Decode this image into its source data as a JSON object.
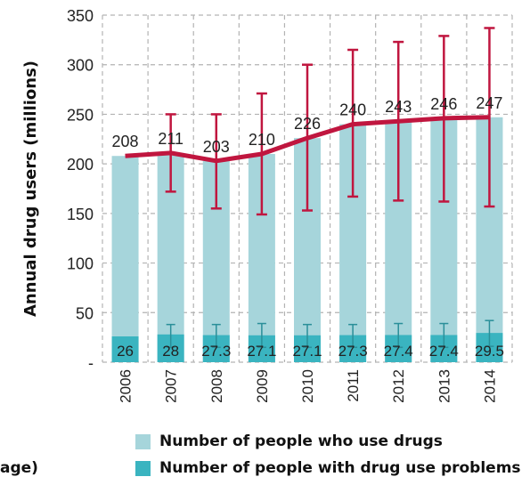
{
  "chart_data": {
    "type": "bar",
    "categories": [
      "2006",
      "2007",
      "2008",
      "2009",
      "2010",
      "2011",
      "2012",
      "2013",
      "2014"
    ],
    "ylabel": "Annual drug users (millions)",
    "ylim": [
      0,
      350
    ],
    "yticks": [
      {
        "value": 0,
        "label": "-"
      },
      {
        "value": 50,
        "label": "50"
      },
      {
        "value": 100,
        "label": "100"
      },
      {
        "value": 150,
        "label": "150"
      },
      {
        "value": 200,
        "label": "200"
      },
      {
        "value": 250,
        "label": "250"
      },
      {
        "value": 300,
        "label": "300"
      },
      {
        "value": 350,
        "label": "350"
      }
    ],
    "grid": true,
    "series": [
      {
        "name": "Number of people who use drugs",
        "values": [
          208,
          211,
          203,
          210,
          226,
          240,
          243,
          246,
          247
        ],
        "labels": [
          "208",
          "211",
          "203",
          "210",
          "226",
          "240",
          "243",
          "246",
          "247"
        ],
        "error_low": [
          0,
          172,
          155,
          149,
          153,
          167,
          163,
          162,
          157
        ],
        "error_high": [
          0,
          250,
          250,
          271,
          300,
          315,
          323,
          329,
          337
        ],
        "line_color": "#c0163f",
        "bar_color": "#a6d5db"
      },
      {
        "name": "Number of people with drug use problems",
        "values": [
          26,
          28,
          27.3,
          27.1,
          27.1,
          27.3,
          27.4,
          27.4,
          29.5
        ],
        "labels": [
          "26",
          "28",
          "27.3",
          "27.1",
          "27.1",
          "27.3",
          "27.4",
          "27.4",
          "29.5"
        ],
        "error_low": [
          0,
          15,
          15,
          15,
          15,
          15,
          15,
          15,
          16
        ],
        "error_high": [
          0,
          38,
          38,
          39,
          38,
          38,
          39,
          39,
          42
        ],
        "bar_color": "#3ab4c0"
      }
    ],
    "legend": {
      "placement": "bottom",
      "partial_label": "age)"
    }
  }
}
